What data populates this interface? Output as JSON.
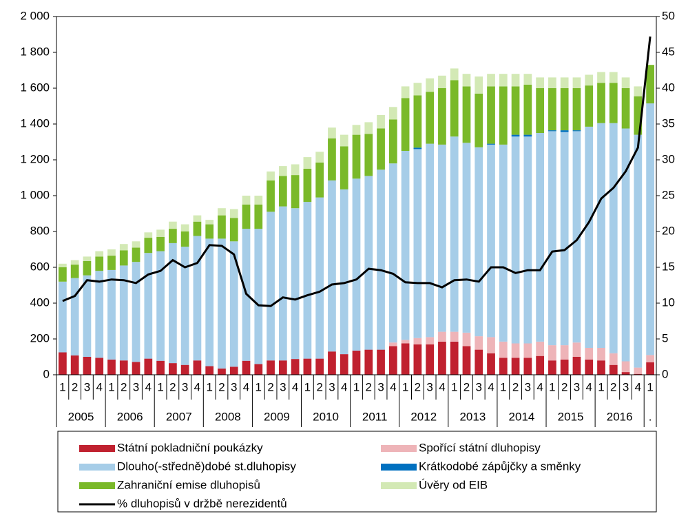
{
  "chart_data": {
    "type": "stacked-bar-line",
    "categories": [
      "1",
      "2",
      "3",
      "4",
      "1",
      "2",
      "3",
      "4",
      "1",
      "2",
      "3",
      "4",
      "1",
      "2",
      "3",
      "4",
      "1",
      "2",
      "3",
      "4",
      "1",
      "2",
      "3",
      "4",
      "1",
      "2",
      "3",
      "4",
      "1",
      "2",
      "3",
      "4",
      "1",
      "2",
      "3",
      "4",
      "1",
      "2",
      "3",
      "4",
      "1",
      "2",
      "3",
      "4",
      "1",
      "2",
      "3",
      "4",
      "1"
    ],
    "years": [
      "2005",
      "2006",
      "2007",
      "2008",
      "2009",
      "2010",
      "2011",
      "2012",
      "2013",
      "2014",
      "2015",
      "2016",
      "."
    ],
    "series": [
      {
        "name": "Státní pokladniční poukázky",
        "color": "#c0212f",
        "values": [
          125,
          108,
          100,
          95,
          85,
          80,
          72,
          90,
          78,
          65,
          55,
          80,
          48,
          35,
          45,
          78,
          60,
          80,
          80,
          88,
          90,
          90,
          130,
          115,
          135,
          140,
          140,
          160,
          175,
          170,
          170,
          185,
          185,
          160,
          140,
          120,
          95,
          95,
          95,
          105,
          80,
          85,
          100,
          85,
          80,
          55,
          15,
          5,
          70
        ]
      },
      {
        "name": "Spořící státní dluhopisy",
        "color": "#eeb4b8",
        "values": [
          0,
          0,
          0,
          0,
          0,
          0,
          0,
          0,
          0,
          0,
          0,
          0,
          0,
          0,
          0,
          0,
          0,
          0,
          0,
          0,
          0,
          0,
          0,
          0,
          0,
          0,
          0,
          20,
          20,
          35,
          40,
          55,
          55,
          75,
          75,
          90,
          90,
          80,
          80,
          80,
          85,
          80,
          80,
          65,
          70,
          65,
          60,
          35,
          40
        ]
      },
      {
        "name": "Dlouho(-středně)dobé st.dluhopisy",
        "color": "#a6cde8",
        "values": [
          395,
          432,
          455,
          485,
          500,
          530,
          558,
          590,
          612,
          670,
          660,
          695,
          712,
          725,
          700,
          737,
          755,
          830,
          860,
          842,
          875,
          900,
          955,
          920,
          960,
          970,
          1005,
          1000,
          1055,
          1055,
          1080,
          1045,
          1090,
          1060,
          1055,
          1075,
          1100,
          1155,
          1155,
          1165,
          1195,
          1190,
          1180,
          1235,
          1255,
          1285,
          1300,
          1300,
          1405
        ]
      },
      {
        "name": "Krátkodobé zápůjčky a směnky",
        "color": "#0070c0",
        "values": [
          0,
          0,
          0,
          0,
          0,
          0,
          0,
          0,
          0,
          0,
          0,
          0,
          0,
          0,
          0,
          0,
          0,
          0,
          0,
          0,
          0,
          0,
          0,
          0,
          0,
          0,
          0,
          0,
          0,
          8,
          0,
          0,
          0,
          0,
          0,
          5,
          0,
          10,
          10,
          0,
          5,
          10,
          5,
          0,
          0,
          0,
          0,
          0,
          0
        ]
      },
      {
        "name": "Zahraniční emise dluhopisů",
        "color": "#7ab929",
        "values": [
          80,
          75,
          80,
          80,
          80,
          85,
          80,
          85,
          80,
          80,
          85,
          80,
          80,
          130,
          130,
          135,
          135,
          175,
          170,
          185,
          185,
          195,
          235,
          240,
          245,
          235,
          230,
          245,
          295,
          292,
          290,
          315,
          315,
          315,
          300,
          320,
          325,
          270,
          280,
          250,
          235,
          235,
          235,
          230,
          225,
          225,
          225,
          215,
          215
        ]
      },
      {
        "name": "Úvěry od EIB",
        "color": "#d3e9b5",
        "values": [
          20,
          25,
          25,
          30,
          35,
          35,
          35,
          30,
          40,
          40,
          40,
          35,
          25,
          40,
          50,
          50,
          50,
          50,
          55,
          60,
          65,
          60,
          60,
          65,
          55,
          65,
          75,
          70,
          65,
          70,
          75,
          70,
          65,
          70,
          95,
          70,
          70,
          70,
          60,
          60,
          60,
          60,
          60,
          60,
          60,
          60,
          60,
          55,
          0
        ]
      },
      {
        "name": "% dluhopisů v držbě nerezidentů",
        "type": "line",
        "axis": "y2",
        "color": "#000000",
        "values": [
          10.3,
          11,
          13.2,
          13,
          13.3,
          13.2,
          12.8,
          14,
          14.5,
          16,
          15,
          15.6,
          18.1,
          18,
          16.8,
          11.3,
          9.7,
          9.6,
          10.8,
          10.5,
          11.1,
          11.6,
          12.6,
          12.8,
          13.3,
          14.8,
          14.6,
          14.1,
          12.9,
          12.8,
          12.8,
          12.2,
          13.2,
          13.3,
          13,
          15,
          15,
          14.2,
          14.6,
          14.6,
          17.2,
          17.4,
          18.8,
          21.3,
          24.6,
          26.1,
          28.4,
          31.7,
          47.2
        ]
      }
    ],
    "ylim": [
      0,
      2000
    ],
    "yticks": [
      0,
      200,
      400,
      600,
      800,
      {
        "value": 1000,
        "label": "1 000"
      },
      {
        "value": 1200,
        "label": "1 200"
      },
      {
        "value": 1400,
        "label": "1 400"
      },
      {
        "value": 1600,
        "label": "1 600"
      },
      {
        "value": 1800,
        "label": "1 800"
      },
      {
        "value": 2000,
        "label": "2 000"
      }
    ],
    "y2lim": [
      0,
      50
    ],
    "y2ticks": [
      0,
      5,
      10,
      15,
      20,
      25,
      30,
      35,
      40,
      45,
      50
    ]
  }
}
